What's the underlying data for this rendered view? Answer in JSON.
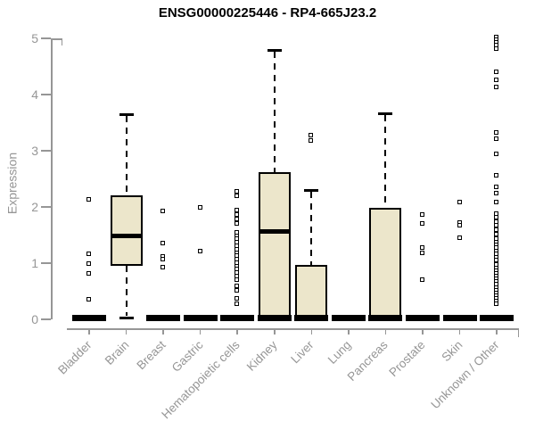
{
  "chart_data": {
    "type": "boxplot",
    "title": "ENSG00000225446 - RP4-665J23.2",
    "ylabel": "Expression",
    "xlabel": "",
    "ylim": [
      0,
      5
    ],
    "yticks": [
      0,
      1,
      2,
      3,
      4,
      5
    ],
    "grid": false,
    "legend": false,
    "colors": {
      "box_fill": "#ece6cb",
      "box_stroke": "#000000",
      "median": "#000000",
      "outlier": "#000000",
      "axis": "#969696",
      "title_text": "#000000"
    },
    "categories": [
      "Bladder",
      "Brain",
      "Breast",
      "Gastric",
      "Hematopoietic cells",
      "Kidney",
      "Liver",
      "Lung",
      "Pancreas",
      "Prostate",
      "Skin",
      "Unknown / Other"
    ],
    "boxes": [
      {
        "category": "Bladder",
        "collapsed": true,
        "q1": 0,
        "median": 0,
        "q3": 0,
        "whisker_low": 0,
        "whisker_high": 0,
        "outliers": [
          2.14,
          1.17,
          1.0,
          0.81,
          0.35
        ]
      },
      {
        "category": "Brain",
        "collapsed": false,
        "q1": 0.95,
        "median": 1.48,
        "q3": 2.21,
        "whisker_low": 0.03,
        "whisker_high": 3.65,
        "outliers": []
      },
      {
        "category": "Breast",
        "collapsed": true,
        "q1": 0,
        "median": 0,
        "q3": 0,
        "whisker_low": 0,
        "whisker_high": 0,
        "outliers": [
          1.93,
          1.35,
          1.12,
          1.07,
          0.93
        ]
      },
      {
        "category": "Gastric",
        "collapsed": true,
        "q1": 0,
        "median": 0,
        "q3": 0,
        "whisker_low": 0,
        "whisker_high": 0,
        "outliers": [
          2.0,
          1.22
        ]
      },
      {
        "category": "Hematopoietic cells",
        "collapsed": true,
        "q1": 0,
        "median": 0,
        "q3": 0,
        "whisker_low": 0,
        "whisker_high": 0,
        "outliers": [
          2.28,
          2.2,
          1.95,
          1.87,
          1.79,
          1.71,
          1.55,
          1.49,
          1.43,
          1.37,
          1.31,
          1.25,
          1.19,
          1.13,
          1.07,
          1.01,
          0.95,
          0.89,
          0.83,
          0.77,
          0.71,
          0.6,
          0.52,
          0.37,
          0.28
        ]
      },
      {
        "category": "Kidney",
        "collapsed": false,
        "q1": 0.05,
        "median": 1.57,
        "q3": 2.62,
        "whisker_low": 0.0,
        "whisker_high": 4.79,
        "outliers": []
      },
      {
        "category": "Liver",
        "collapsed": false,
        "q1": 0.0,
        "median": 0.02,
        "q3": 0.97,
        "whisker_low": 0.0,
        "whisker_high": 2.3,
        "outliers": [
          3.27,
          3.19
        ]
      },
      {
        "category": "Lung",
        "collapsed": true,
        "q1": 0,
        "median": 0,
        "q3": 0,
        "whisker_low": 0,
        "whisker_high": 0,
        "outliers": []
      },
      {
        "category": "Pancreas",
        "collapsed": false,
        "q1": 0.0,
        "median": 0.02,
        "q3": 1.98,
        "whisker_low": 0.0,
        "whisker_high": 3.66,
        "outliers": []
      },
      {
        "category": "Prostate",
        "collapsed": true,
        "q1": 0,
        "median": 0,
        "q3": 0,
        "whisker_low": 0,
        "whisker_high": 0,
        "outliers": [
          1.87,
          1.71,
          1.27,
          1.19,
          0.71
        ]
      },
      {
        "category": "Skin",
        "collapsed": true,
        "q1": 0,
        "median": 0,
        "q3": 0,
        "whisker_low": 0,
        "whisker_high": 0,
        "outliers": [
          2.08,
          1.73,
          1.67,
          1.46
        ]
      },
      {
        "category": "Unknown / Other",
        "collapsed": true,
        "q1": 0,
        "median": 0,
        "q3": 0,
        "whisker_low": 0,
        "whisker_high": 0,
        "outliers": [
          5.03,
          4.98,
          4.93,
          4.88,
          4.82,
          4.4,
          4.26,
          4.13,
          3.33,
          3.22,
          2.94,
          2.56,
          2.35,
          2.25,
          2.08,
          1.88,
          1.81,
          1.74,
          1.68,
          1.59,
          1.51,
          1.44,
          1.38,
          1.33,
          1.27,
          1.22,
          1.16,
          1.11,
          1.05,
          0.97,
          0.92,
          0.87,
          0.82,
          0.77,
          0.72,
          0.67,
          0.62,
          0.57,
          0.52,
          0.47,
          0.42,
          0.37,
          0.32,
          0.27
        ]
      }
    ]
  }
}
